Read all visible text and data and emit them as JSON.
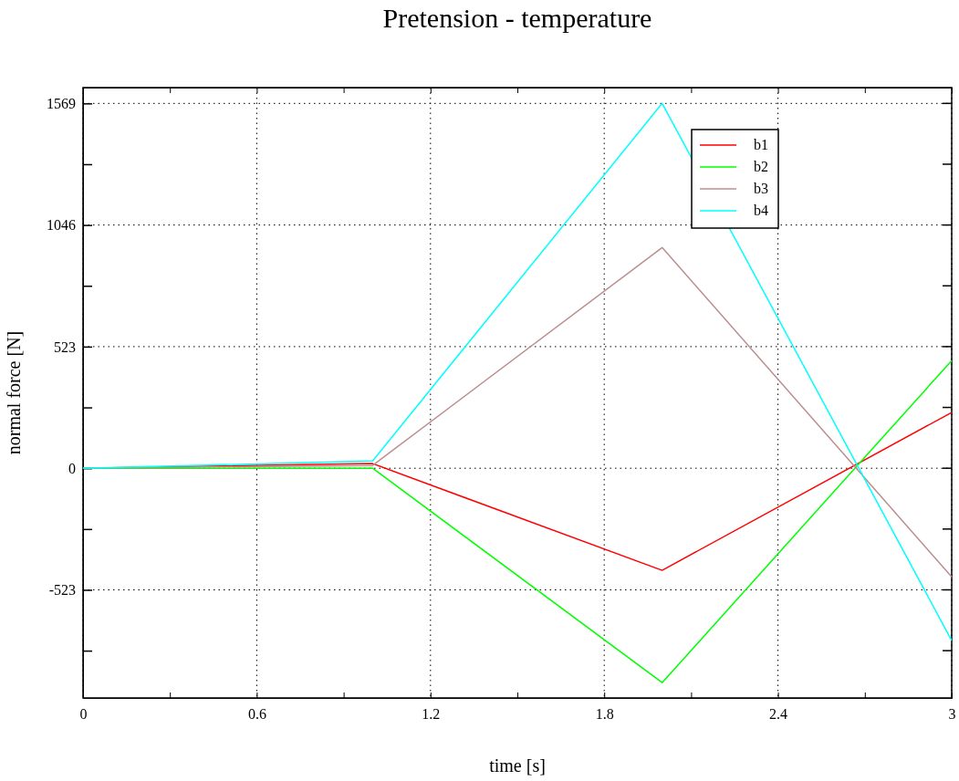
{
  "chart_data": {
    "type": "line",
    "title": "Pretension - temperature",
    "xlabel": "time [s]",
    "ylabel": "normal force [N]",
    "x": [
      0,
      1,
      2,
      3
    ],
    "series": [
      {
        "name": "b1",
        "color": "#ff0000",
        "values": [
          0,
          20,
          -439,
          240
        ]
      },
      {
        "name": "b2",
        "color": "#00ff00",
        "values": [
          0,
          0,
          -922,
          463
        ]
      },
      {
        "name": "b3",
        "color": "#bc8f8f",
        "values": [
          0,
          12,
          949,
          -467
        ]
      },
      {
        "name": "b4",
        "color": "#00ffff",
        "values": [
          0,
          31,
          1569,
          -741
        ]
      }
    ],
    "xlim": [
      0,
      3
    ],
    "xticks": [
      0,
      {
        "value": 0.3,
        "label": null
      },
      0.6,
      {
        "value": 0.9,
        "label": null
      },
      1.2,
      {
        "value": 1.5,
        "label": null
      },
      1.8,
      {
        "value": 2.1,
        "label": null
      },
      2.4,
      {
        "value": 2.7,
        "label": null
      },
      3
    ],
    "ylim": [
      -988,
      1637
    ],
    "yticks": [
      {
        "value": -784.5,
        "label": null
      },
      -523,
      {
        "value": -261.5,
        "label": null
      },
      0,
      {
        "value": 261.5,
        "label": null
      },
      523,
      {
        "value": 784.5,
        "label": null
      },
      1046,
      {
        "value": 1307.5,
        "label": null
      },
      1569
    ],
    "grid": true,
    "legend": "top right",
    "line_style": "solid",
    "marker": "none"
  }
}
